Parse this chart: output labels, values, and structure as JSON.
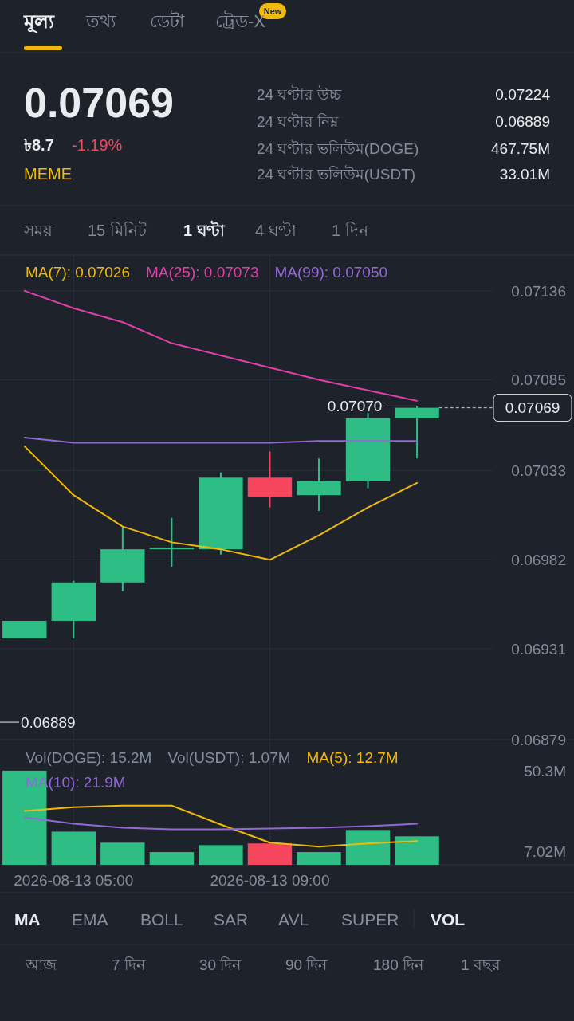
{
  "chart_data": [
    {
      "type": "other",
      "annotations": [
        "মূল্য",
        "তথ্য",
        "ডেটা",
        "ট্রেড-X",
        "New",
        "0.07069",
        "৳8.7",
        "-1.19%",
        "MEME",
        "24 ঘণ্টার উচ্চ",
        "24 ঘণ্টার নিম্ন",
        "24 ঘণ্টার ভলিউম(DOGE)",
        "24 ঘণ্টার ভলিউম(USDT)",
        "0.07224",
        "0.06889",
        "467.75M",
        "33.01M",
        "সময়",
        "15 মিনিট",
        "1 ঘণ্টা",
        "4 ঘণ্টা",
        "1 দিন"
      ]
    },
    {
      "type": "candlestick",
      "x": [
        "2026-08-13T04:00",
        "2026-08-13T05:00",
        "2026-08-13T06:00",
        "2026-08-13T07:00",
        "2026-08-13T08:00",
        "2026-08-13T09:00",
        "2026-08-13T10:00",
        "2026-08-13T11:00",
        "2026-08-13T12:00"
      ],
      "ohlc": [
        [
          0.06937,
          0.06947,
          0.06937,
          0.06947
        ],
        [
          0.06947,
          0.0697,
          0.06937,
          0.06969
        ],
        [
          0.06969,
          0.07001,
          0.06964,
          0.06988
        ],
        [
          0.06988,
          0.07006,
          0.06978,
          0.06989
        ],
        [
          0.06988,
          0.07032,
          0.06985,
          0.07029
        ],
        [
          0.07029,
          0.07044,
          0.07012,
          0.07018
        ],
        [
          0.07019,
          0.0704,
          0.0701,
          0.07027
        ],
        [
          0.07027,
          0.07066,
          0.07023,
          0.07063
        ],
        [
          0.07063,
          0.0707,
          0.0704,
          0.07069
        ]
      ],
      "colors": [
        "#2ebd85",
        "#2ebd85",
        "#2ebd85",
        "#2ebd85",
        "#2ebd85",
        "#f6465d",
        "#2ebd85",
        "#2ebd85",
        "#2ebd85"
      ],
      "series": [
        {
          "type": "line",
          "name": "MA(7): 0.07026",
          "color": "#f0b90b",
          "values": [
            0.07047,
            0.07019,
            0.07001,
            0.06992,
            0.06988,
            0.06982,
            0.06996,
            0.07012,
            0.07026
          ]
        },
        {
          "type": "line",
          "name": "MA(25): 0.07073",
          "color": "#e040a8",
          "values": [
            0.07136,
            0.07126,
            0.07118,
            0.07106,
            0.07099,
            0.07092,
            0.07085,
            0.07079,
            0.07073
          ]
        },
        {
          "type": "line",
          "name": "MA(99): 0.07050",
          "color": "#9468d6",
          "values": [
            0.07052,
            0.07049,
            0.07049,
            0.07049,
            0.07049,
            0.07049,
            0.0705,
            0.0705,
            0.0705
          ]
        }
      ],
      "xlim": [
        "2026-08-13T03:30",
        "2026-08-13T15:12"
      ],
      "ylim": [
        0.06879,
        0.07156
      ],
      "yticks": [
        0.07136,
        0.07085,
        0.07033,
        0.06982,
        0.06931,
        0.06879
      ],
      "xticks": [
        "2026-08-13T05:00",
        "2026-08-13T09:00"
      ],
      "tick_labels": "y",
      "grid": true,
      "ref_lines": [
        {
          "axis": "y",
          "value": 0.07069,
          "label": "0.07069",
          "line_style": "dashed"
        },
        {
          "axis": "y",
          "value": 0.06889,
          "label": "0.06889",
          "line_style": "solid"
        }
      ],
      "annotations": [
        {
          "text": "0.07070",
          "x": "2026-08-13T12:00",
          "y": 0.0707
        }
      ]
    },
    {
      "type": "bar",
      "x": [
        "2026-08-13T04:00",
        "2026-08-13T05:00",
        "2026-08-13T06:00",
        "2026-08-13T07:00",
        "2026-08-13T08:00",
        "2026-08-13T09:00",
        "2026-08-13T10:00",
        "2026-08-13T11:00",
        "2026-08-13T12:00"
      ],
      "series": [
        {
          "type": "bar",
          "values": [
            50.3,
            17.7,
            11.8,
            6.8,
            10.5,
            11.4,
            6.8,
            18.6,
            15.2
          ],
          "colors": [
            "#2ebd85",
            "#2ebd85",
            "#2ebd85",
            "#2ebd85",
            "#2ebd85",
            "#f6465d",
            "#2ebd85",
            "#2ebd85",
            "#2ebd85"
          ]
        },
        {
          "type": "line",
          "name": "MA(5): 12.7M",
          "color": "#f0b90b",
          "values": [
            28.7,
            30.8,
            31.6,
            31.6,
            21.5,
            11.8,
            9.7,
            11.4,
            12.7
          ]
        },
        {
          "type": "line",
          "name": "MA(10): 21.9M",
          "color": "#9468d6",
          "values": [
            25.3,
            21.9,
            19.8,
            19.0,
            19.0,
            19.4,
            19.8,
            20.7,
            21.9
          ]
        }
      ],
      "xlim": [
        "2026-08-13T03:30",
        "2026-08-13T15:12"
      ],
      "ylim": [
        0,
        66
      ],
      "yticks": [
        {
          "value": 50.3,
          "label": "50.3M"
        },
        {
          "value": 7.02,
          "label": "7.02M"
        }
      ],
      "xticks": [
        {
          "value": "2026-08-13T05:00",
          "label": "2026-08-13 05:00"
        },
        {
          "value": "2026-08-13T09:00",
          "label": "2026-08-13 09:00"
        }
      ],
      "grid": "x",
      "annotations": [
        "Vol(DOGE): 15.2M",
        "Vol(USDT): 1.07M"
      ]
    },
    {
      "type": "other",
      "annotations": [
        "MA",
        "EMA",
        "BOLL",
        "SAR",
        "AVL",
        "SUPER",
        "VOL",
        "আজ",
        "7 দিন",
        "30 দিন",
        "90 দিন",
        "180 দিন",
        "1 বছর"
      ]
    }
  ]
}
